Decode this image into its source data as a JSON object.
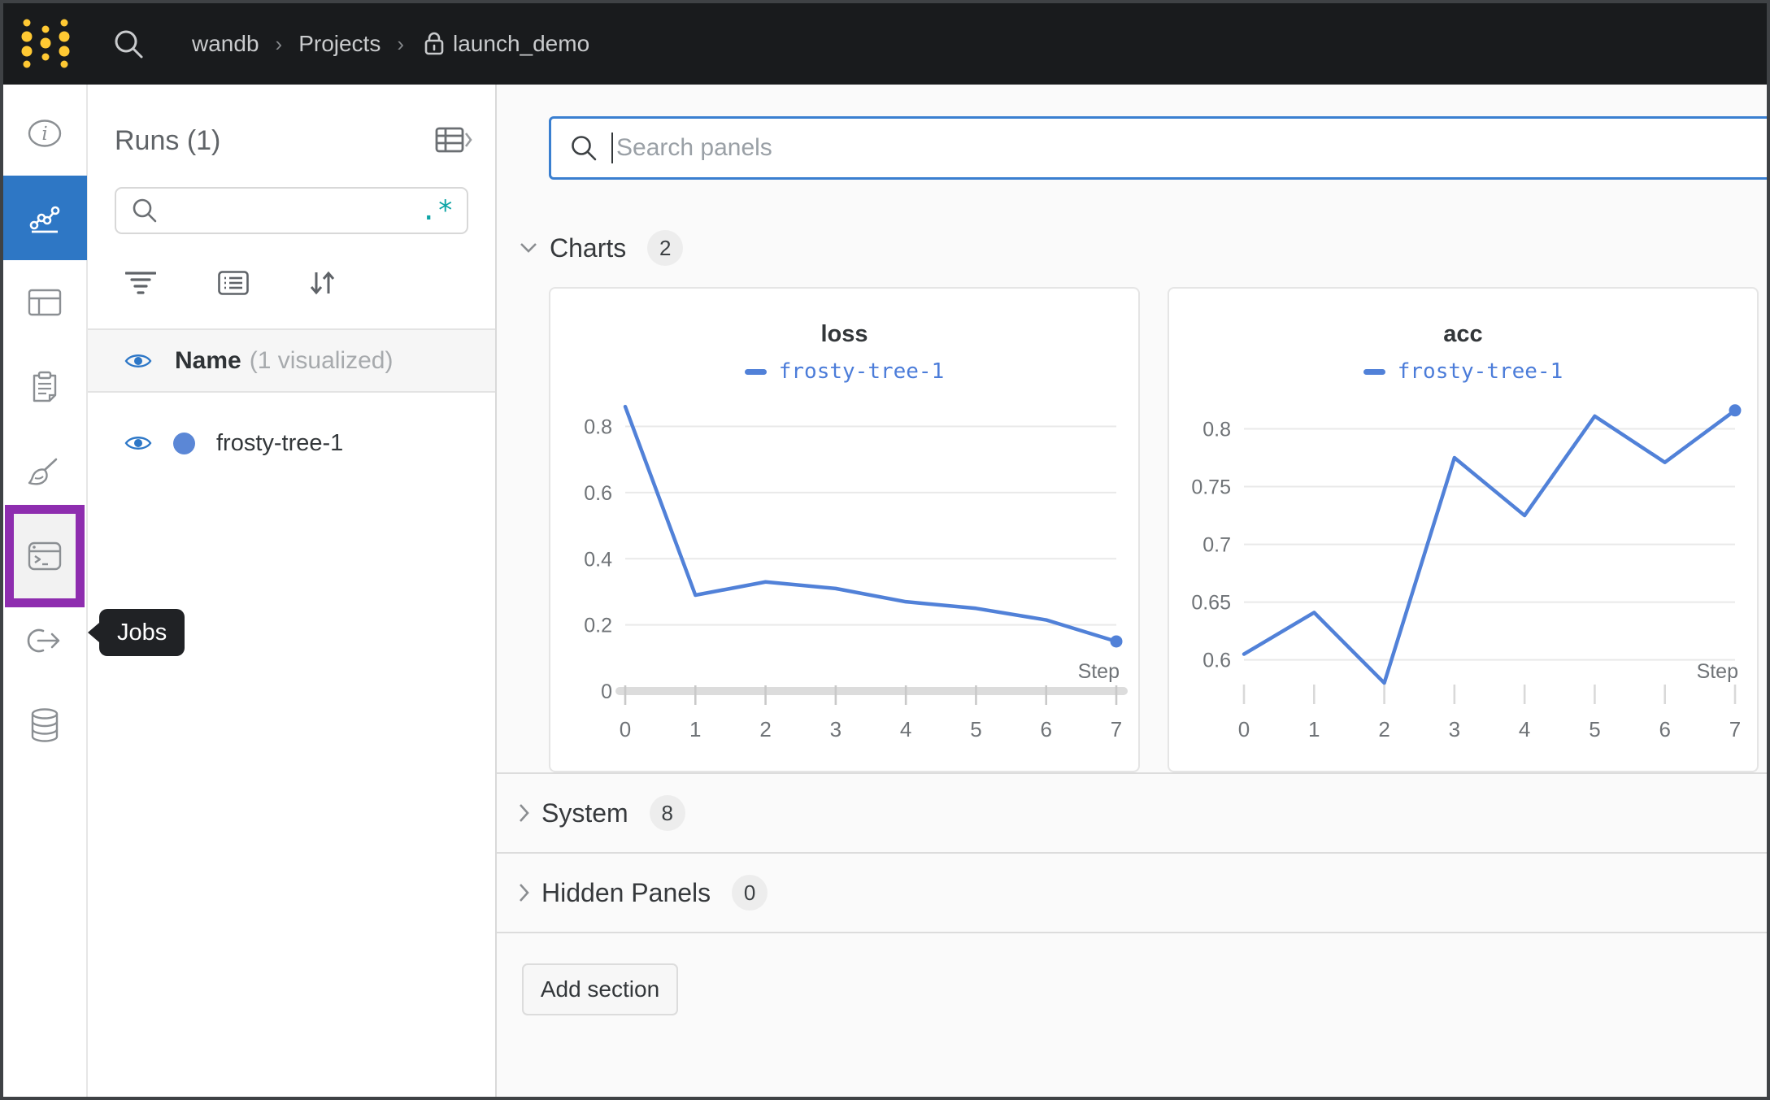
{
  "topbar": {
    "breadcrumb": {
      "team": "wandb",
      "section": "Projects",
      "project": "launch_demo",
      "separator": "›"
    },
    "icons": [
      "wandb-logo",
      "search-icon",
      "lock-icon"
    ]
  },
  "sidebar": {
    "tooltip": "Jobs",
    "items": [
      {
        "icon": "info-icon",
        "selected": false
      },
      {
        "icon": "line-chart-icon",
        "selected": true
      },
      {
        "icon": "panels-icon",
        "selected": false
      },
      {
        "icon": "notes-icon",
        "selected": false
      },
      {
        "icon": "sweeps-icon",
        "selected": false
      },
      {
        "icon": "jobs-icon",
        "selected": false,
        "highlighted": true
      },
      {
        "icon": "launch-icon",
        "selected": false
      },
      {
        "icon": "artifacts-icon",
        "selected": false
      }
    ],
    "highlight_color": "#8e2daf",
    "selected_color": "#2e77c5"
  },
  "runs_panel": {
    "title": "Runs (1)",
    "search": {
      "placeholder": "",
      "regex_glyph": ".*"
    },
    "tools": [
      "filter-icon",
      "list-icon",
      "sort-icon"
    ],
    "name_header": "Name",
    "name_suffix": "(1 visualized)",
    "runs": [
      {
        "name": "frosty-tree-1",
        "color": "#5b87d6",
        "visible": true
      }
    ]
  },
  "main": {
    "search": {
      "placeholder": "Search panels"
    },
    "sections": [
      {
        "label": "Charts",
        "count": "2",
        "expanded": true
      },
      {
        "label": "System",
        "count": "8",
        "expanded": false
      },
      {
        "label": "Hidden Panels",
        "count": "0",
        "expanded": false
      }
    ],
    "add_section_label": "Add section"
  },
  "chart_data": [
    {
      "type": "line",
      "title": "loss",
      "x": [
        0,
        1,
        2,
        3,
        4,
        5,
        6,
        7
      ],
      "series": [
        {
          "name": "frosty-tree-1",
          "color": "#5181d8",
          "values": [
            0.86,
            0.29,
            0.33,
            0.31,
            0.27,
            0.25,
            0.215,
            0.15
          ]
        }
      ],
      "xlabel": "Step",
      "yticks": [
        0,
        0.2,
        0.4,
        0.6,
        0.8
      ],
      "ylim": [
        0,
        0.88
      ],
      "show_zero_axis": true,
      "grid": true,
      "legend_position": "top"
    },
    {
      "type": "line",
      "title": "acc",
      "x": [
        0,
        1,
        2,
        3,
        4,
        5,
        6,
        7
      ],
      "series": [
        {
          "name": "frosty-tree-1",
          "color": "#5181d8",
          "values": [
            0.605,
            0.641,
            0.58,
            0.775,
            0.725,
            0.811,
            0.771,
            0.816
          ]
        }
      ],
      "xlabel": "Step",
      "yticks": [
        0.6,
        0.65,
        0.7,
        0.75,
        0.8
      ],
      "ylim": [
        0.573,
        0.825
      ],
      "show_zero_axis": false,
      "grid": true,
      "legend_position": "top"
    }
  ]
}
